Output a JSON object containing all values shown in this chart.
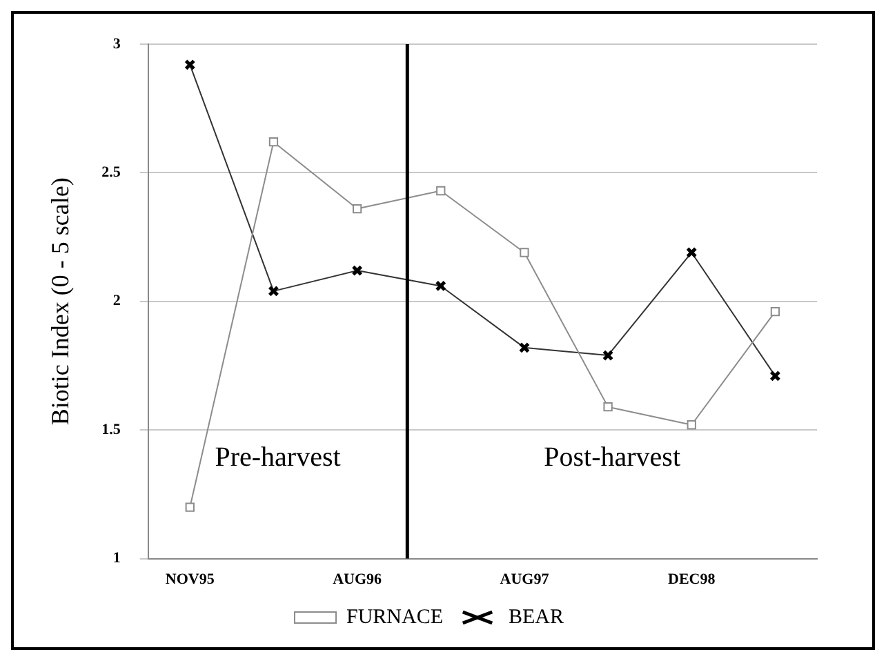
{
  "chart_data": {
    "type": "line",
    "ylabel": "Biotic Index (0 - 5 scale)",
    "categories": [
      "NOV95",
      null,
      "AUG96",
      null,
      "AUG97",
      null,
      "DEC98",
      null
    ],
    "series": [
      {
        "name": "FURNACE",
        "color": "#8c8c8c",
        "marker": "square",
        "values": [
          1.2,
          2.62,
          2.36,
          2.43,
          2.19,
          1.59,
          1.52,
          1.96
        ]
      },
      {
        "name": "BEAR",
        "color": "#333333",
        "marker": "cross",
        "values": [
          2.92,
          2.04,
          2.12,
          2.06,
          1.82,
          1.79,
          2.19,
          1.71
        ]
      }
    ],
    "ylim": [
      1,
      3
    ],
    "yticks": [
      1,
      1.5,
      2,
      2.5,
      3
    ],
    "grid": "y",
    "legend": "bottom",
    "line_style": "solid",
    "annotations": [
      "Pre-harvest",
      "Post-harvest"
    ]
  }
}
